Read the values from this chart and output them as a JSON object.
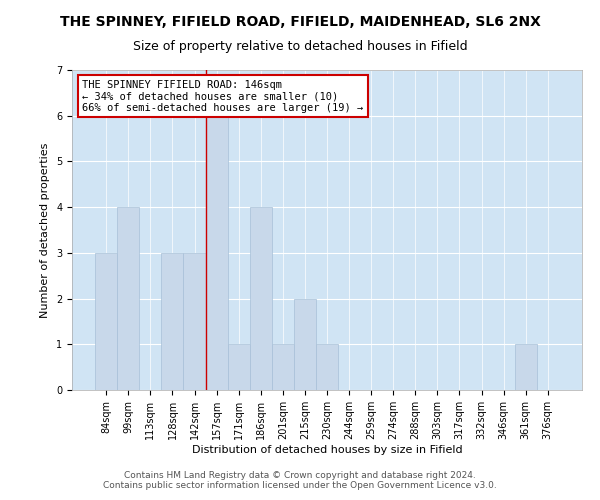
{
  "title": "THE SPINNEY, FIFIELD ROAD, FIFIELD, MAIDENHEAD, SL6 2NX",
  "subtitle": "Size of property relative to detached houses in Fifield",
  "xlabel": "Distribution of detached houses by size in Fifield",
  "ylabel": "Number of detached properties",
  "footer_line1": "Contains HM Land Registry data © Crown copyright and database right 2024.",
  "footer_line2": "Contains public sector information licensed under the Open Government Licence v3.0.",
  "bar_labels": [
    "84sqm",
    "99sqm",
    "113sqm",
    "128sqm",
    "142sqm",
    "157sqm",
    "171sqm",
    "186sqm",
    "201sqm",
    "215sqm",
    "230sqm",
    "244sqm",
    "259sqm",
    "274sqm",
    "288sqm",
    "303sqm",
    "317sqm",
    "332sqm",
    "346sqm",
    "361sqm",
    "376sqm"
  ],
  "bar_values": [
    3,
    4,
    0,
    3,
    3,
    6,
    1,
    4,
    1,
    2,
    1,
    0,
    0,
    0,
    0,
    0,
    0,
    0,
    0,
    1,
    0
  ],
  "bar_color": "#c8d8ea",
  "bar_edgecolor": "#a8c0d8",
  "vline_x_index": 4.5,
  "vline_color": "#cc0000",
  "annotation_text": "THE SPINNEY FIFIELD ROAD: 146sqm\n← 34% of detached houses are smaller (10)\n66% of semi-detached houses are larger (19) →",
  "ylim": [
    0,
    7
  ],
  "yticks": [
    0,
    1,
    2,
    3,
    4,
    5,
    6,
    7
  ],
  "grid_color": "#ffffff",
  "figure_bg": "#ffffff",
  "plot_bg_color": "#d0e4f4",
  "title_fontsize": 10,
  "subtitle_fontsize": 9,
  "annotation_fontsize": 7.5,
  "axis_label_fontsize": 8,
  "tick_fontsize": 7,
  "footer_fontsize": 6.5
}
